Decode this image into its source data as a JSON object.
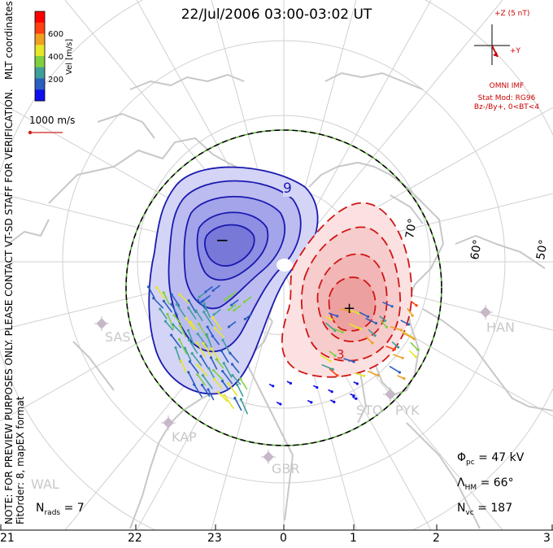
{
  "title": "22/Jul/2006 03:00-03:02 UT",
  "side_notes": {
    "mlt": "MLT coordinates",
    "warning": "NOTE: FOR PREVIEW PURPOSES ONLY. PLEASE CONTACT VT-SD STAFF FOR VERIFICATION.",
    "fit": "FitOrder: 8, mapEX format"
  },
  "colorbar": {
    "label": "Vel [m/s]",
    "ticks": [
      "600",
      "400",
      "200"
    ],
    "colors": [
      "#1010ee",
      "#2a5fc0",
      "#3f9f9a",
      "#7fd040",
      "#e6e62a",
      "#f0a020",
      "#ff4010",
      "#ff0000"
    ]
  },
  "vector_scale": {
    "label": "1000 m/s",
    "color": "#d02020"
  },
  "imf": {
    "axis_z": "+Z (5 nT)",
    "axis_y": "+Y",
    "source": "OMNI IMF",
    "model": "Stat Mod: RG96",
    "condition": "Bz-/By+, 0<BT<4",
    "color": "#cc0000"
  },
  "latitude_labels": [
    "70°",
    "60°",
    "50°"
  ],
  "stations": [
    "SAS",
    "KAP",
    "HAN",
    "STO",
    "PYK",
    "GBR",
    "WAL"
  ],
  "potential": {
    "min_marker": "−",
    "max_marker": "+",
    "label_nine": "9",
    "label_three": "3"
  },
  "stats": {
    "phi": {
      "label": "Φ",
      "sub": "pc",
      "value": "= 47 kV"
    },
    "lambda": {
      "label": "Λ",
      "sub": "HM",
      "value": "= 66°"
    },
    "nvc": {
      "label": "N",
      "sub": "vc",
      "value": "= 187"
    },
    "nrads": {
      "label": "N",
      "sub": "rads",
      "value": "= 7"
    }
  },
  "mlt_labels": [
    "21",
    "22",
    "23",
    "0",
    "1",
    "2",
    "3"
  ]
}
